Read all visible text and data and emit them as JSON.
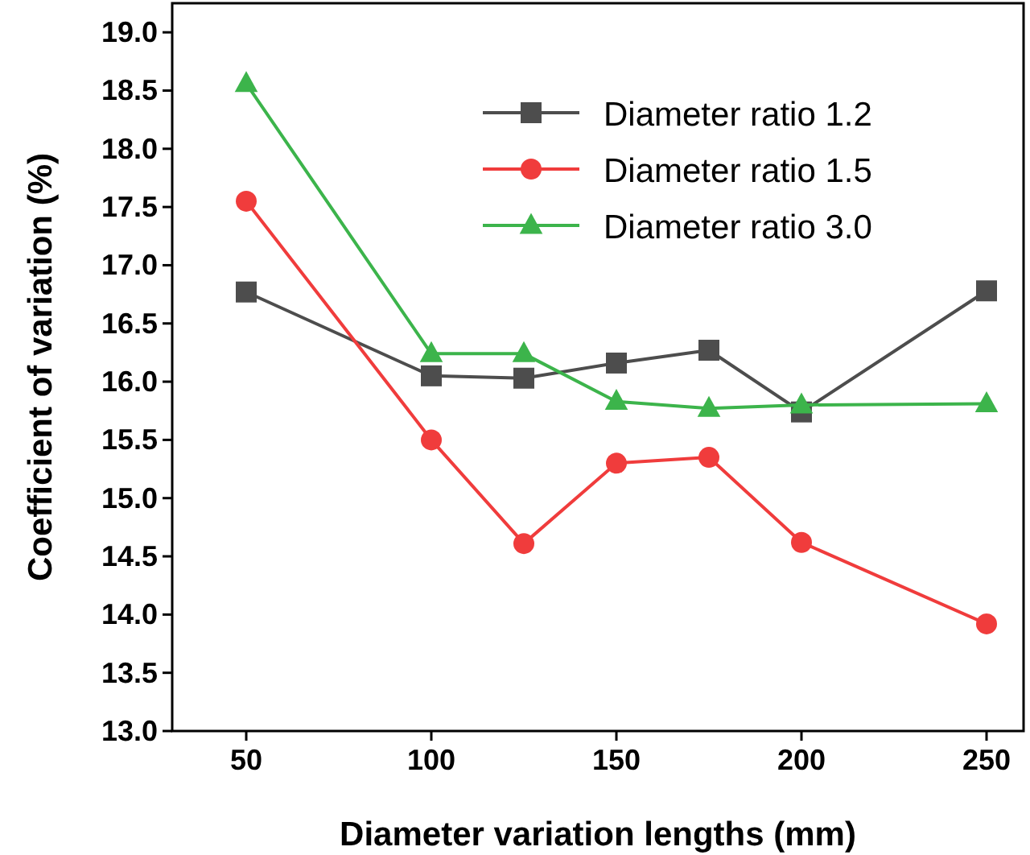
{
  "chart_data": {
    "type": "line",
    "xlabel": "Diameter variation lengths (mm)",
    "ylabel": "Coefficient of variation (%)",
    "x": [
      50,
      100,
      125,
      150,
      175,
      200,
      250
    ],
    "xlim": [
      30,
      260
    ],
    "xticks": [
      50,
      100,
      150,
      200,
      250
    ],
    "ylim": [
      13,
      19.25
    ],
    "yticks": [
      {
        "value": 13,
        "label": "13.0"
      },
      13.5,
      {
        "value": 14,
        "label": "14.0"
      },
      14.5,
      {
        "value": 15,
        "label": "15.0"
      },
      15.5,
      {
        "value": 16,
        "label": "16.0"
      },
      16.5,
      {
        "value": 17,
        "label": "17.0"
      },
      17.5,
      {
        "value": 18,
        "label": "18.0"
      },
      18.5,
      {
        "value": 19,
        "label": "19.0"
      }
    ],
    "legend": "top right",
    "grid": false,
    "series": [
      {
        "name": "Diameter ratio 1.2",
        "color": "#4d4d4d",
        "marker": "square",
        "values": [
          16.77,
          16.05,
          16.03,
          16.16,
          16.27,
          15.74,
          16.78
        ]
      },
      {
        "name": "Diameter ratio 1.5",
        "color": "#f03c3c",
        "marker": "circle",
        "values": [
          17.55,
          15.5,
          14.61,
          15.3,
          15.35,
          14.62,
          13.92
        ]
      },
      {
        "name": "Diameter ratio 3.0",
        "color": "#3cb44b",
        "marker": "triangle",
        "values": [
          18.56,
          16.24,
          16.24,
          15.83,
          15.77,
          15.8,
          15.81
        ]
      }
    ]
  }
}
